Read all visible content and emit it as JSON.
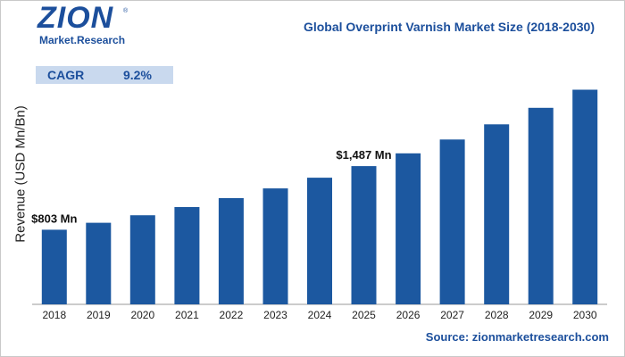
{
  "logo": {
    "main": "ZION",
    "sub": "Market.Research",
    "reg": "®"
  },
  "title": "Global Overprint Varnish Market Size (2018-2030)",
  "cagr": {
    "label": "CAGR",
    "value": "9.2%"
  },
  "source": "Source: zionmarketresearch.com",
  "colors": {
    "bar": "#1c58a0",
    "brand": "#1c4f9c",
    "cagr_bg": "#c9d9ee"
  },
  "chart_data": {
    "type": "bar",
    "ylabel": "Revenue (USD Mn/Bn)",
    "categories": [
      "2018",
      "2019",
      "2020",
      "2021",
      "2022",
      "2023",
      "2024",
      "2025",
      "2026",
      "2027",
      "2028",
      "2029",
      "2030"
    ],
    "values": [
      803,
      877,
      958,
      1046,
      1142,
      1247,
      1362,
      1487,
      1624,
      1773,
      1936,
      2114,
      2309
    ],
    "data_labels": [
      {
        "category": "2018",
        "text": "$803 Mn"
      },
      {
        "category": "2025",
        "text": "$1,487 Mn"
      }
    ],
    "ylim": [
      0,
      2400
    ],
    "grid": false
  }
}
